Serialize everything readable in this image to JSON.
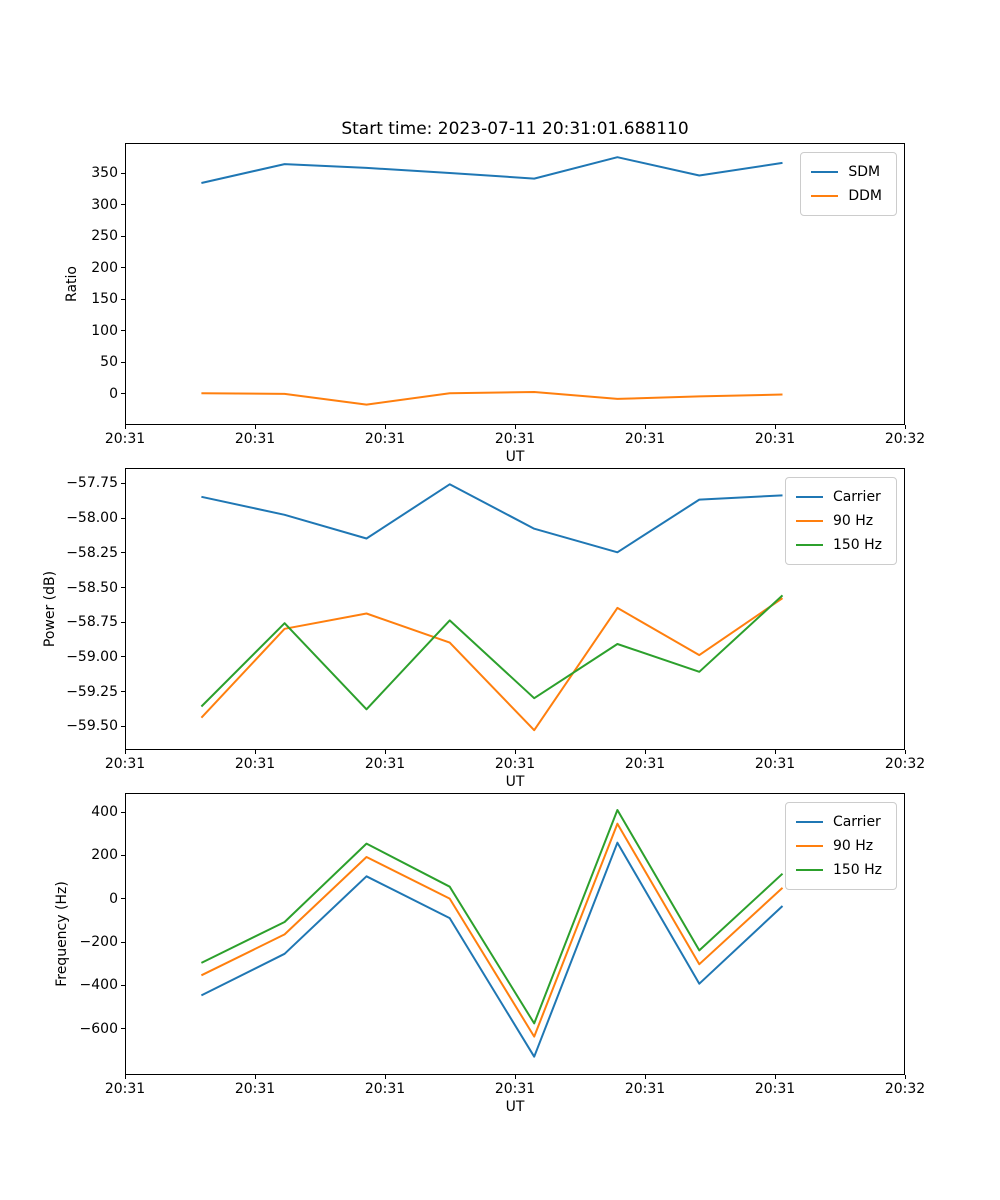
{
  "figure": {
    "title": "Start time: 2023-07-11 20:31:01.688110",
    "background": "#ffffff",
    "axis_color": "#000000"
  },
  "palette": {
    "blue": "#1f77b4",
    "orange": "#ff7f0e",
    "green": "#2ca02c"
  },
  "chart_data": [
    {
      "type": "line",
      "xlabel": "UT",
      "ylabel": "Ratio",
      "x_seconds": [
        5.8,
        12.2,
        18.5,
        24.9,
        31.4,
        37.8,
        44.1,
        50.5
      ],
      "x_axis": {
        "range_seconds": [
          0,
          60
        ],
        "tick_seconds": [
          0,
          10,
          20,
          30,
          40,
          50,
          60
        ],
        "tick_labels": [
          "20:31",
          "20:31",
          "20:31",
          "20:31",
          "20:31",
          "20:31",
          "20:32"
        ]
      },
      "ylim": [
        -50,
        398
      ],
      "ytick_values": [
        0,
        50,
        100,
        150,
        200,
        250,
        300,
        350
      ],
      "ytick_labels": [
        "0",
        "50",
        "100",
        "150",
        "200",
        "250",
        "300",
        "350"
      ],
      "grid": false,
      "legend": {
        "position": "upper right",
        "entries": [
          "SDM",
          "DDM"
        ]
      },
      "series": [
        {
          "name": "SDM",
          "color": "#1f77b4",
          "values": [
            336,
            366,
            360,
            352,
            343,
            377,
            348,
            368
          ]
        },
        {
          "name": "DDM",
          "color": "#ff7f0e",
          "values": [
            2,
            1,
            -16,
            2,
            4,
            -7,
            -3,
            0
          ]
        }
      ]
    },
    {
      "type": "line",
      "xlabel": "UT",
      "ylabel": "Power (dB)",
      "x_seconds": [
        5.8,
        12.2,
        18.5,
        24.9,
        31.4,
        37.8,
        44.1,
        50.5
      ],
      "x_axis": {
        "range_seconds": [
          0,
          60
        ],
        "tick_seconds": [
          0,
          10,
          20,
          30,
          40,
          50,
          60
        ],
        "tick_labels": [
          "20:31",
          "20:31",
          "20:31",
          "20:31",
          "20:31",
          "20:31",
          "20:32"
        ]
      },
      "ylim": [
        -59.67,
        -57.64
      ],
      "ytick_values": [
        -57.75,
        -58.0,
        -58.25,
        -58.5,
        -58.75,
        -59.0,
        -59.25,
        -59.5
      ],
      "ytick_labels": [
        "−57.75",
        "−58.00",
        "−58.25",
        "−58.50",
        "−58.75",
        "−59.00",
        "−59.25",
        "−59.50"
      ],
      "grid": false,
      "legend": {
        "position": "upper right",
        "entries": [
          "Carrier",
          "90 Hz",
          "150 Hz"
        ]
      },
      "series": [
        {
          "name": "Carrier",
          "color": "#1f77b4",
          "values": [
            -57.84,
            -57.97,
            -58.14,
            -57.75,
            -58.07,
            -58.24,
            -57.86,
            -57.83
          ]
        },
        {
          "name": "90 Hz",
          "color": "#ff7f0e",
          "values": [
            -59.43,
            -58.79,
            -58.68,
            -58.89,
            -59.52,
            -58.64,
            -58.98,
            -58.57
          ]
        },
        {
          "name": "150 Hz",
          "color": "#2ca02c",
          "values": [
            -59.35,
            -58.75,
            -59.37,
            -58.73,
            -59.29,
            -58.9,
            -59.1,
            -58.55
          ]
        }
      ]
    },
    {
      "type": "line",
      "xlabel": "UT",
      "ylabel": "Frequency (Hz)",
      "x_seconds": [
        5.8,
        12.2,
        18.5,
        24.9,
        31.4,
        37.8,
        44.1,
        50.5
      ],
      "x_axis": {
        "range_seconds": [
          0,
          60
        ],
        "tick_seconds": [
          0,
          10,
          20,
          30,
          40,
          50,
          60
        ],
        "tick_labels": [
          "20:31",
          "20:31",
          "20:31",
          "20:31",
          "20:31",
          "20:31",
          "20:32"
        ]
      },
      "ylim": [
        -814,
        488
      ],
      "ytick_values": [
        400,
        200,
        0,
        -200,
        -400,
        -600
      ],
      "ytick_labels": [
        "400",
        "200",
        "0",
        "−200",
        "−400",
        "−600"
      ],
      "grid": false,
      "legend": {
        "position": "upper right",
        "entries": [
          "Carrier",
          "90 Hz",
          "150 Hz"
        ]
      },
      "series": [
        {
          "name": "Carrier",
          "color": "#1f77b4",
          "values": [
            -442,
            -250,
            108,
            -85,
            -725,
            263,
            -388,
            -29
          ]
        },
        {
          "name": "90 Hz",
          "color": "#ff7f0e",
          "values": [
            -349,
            -160,
            197,
            5,
            -632,
            351,
            -298,
            55
          ]
        },
        {
          "name": "150 Hz",
          "color": "#2ca02c",
          "values": [
            -292,
            -103,
            259,
            60,
            -571,
            414,
            -234,
            120
          ]
        }
      ]
    }
  ]
}
